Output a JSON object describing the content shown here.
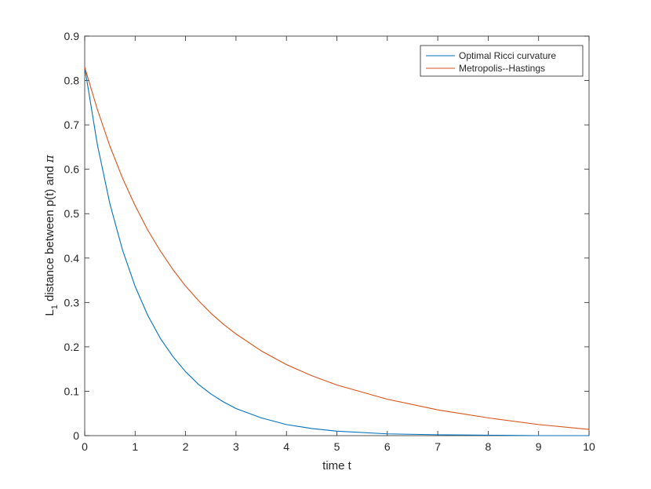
{
  "chart_data": {
    "type": "line",
    "xlabel": "time t",
    "ylabel": {
      "prefix": "L",
      "subscript": "1",
      "suffix": " distance between p(t) and ",
      "symbol": "π"
    },
    "xlim": [
      0,
      10
    ],
    "ylim": [
      0,
      0.9
    ],
    "xticks": [
      "0",
      "1",
      "2",
      "3",
      "4",
      "5",
      "6",
      "7",
      "8",
      "9",
      "10"
    ],
    "yticks": [
      "0",
      "0.1",
      "0.2",
      "0.3",
      "0.4",
      "0.5",
      "0.6",
      "0.7",
      "0.8",
      "0.9"
    ],
    "grid": false,
    "legend_position": "top-right",
    "series": [
      {
        "name": "Optimal Ricci curvature",
        "color": "#0072BD",
        "x": [
          0,
          0.25,
          0.5,
          0.75,
          1,
          1.25,
          1.5,
          1.75,
          2,
          2.25,
          2.5,
          2.75,
          3,
          3.5,
          4,
          4.5,
          5,
          6,
          7,
          8,
          9,
          10
        ],
        "y": [
          0.83,
          0.656,
          0.522,
          0.418,
          0.336,
          0.271,
          0.219,
          0.178,
          0.144,
          0.116,
          0.094,
          0.076,
          0.061,
          0.04,
          0.025,
          0.016,
          0.01,
          0.004,
          0.002,
          0.001,
          0.0,
          0.0
        ]
      },
      {
        "name": "Metropolis--Hastings",
        "color": "#D95319",
        "x": [
          0,
          0.25,
          0.5,
          0.75,
          1,
          1.25,
          1.5,
          1.75,
          2,
          2.25,
          2.5,
          2.75,
          3,
          3.5,
          4,
          4.5,
          5,
          6,
          7,
          8,
          9,
          10
        ],
        "y": [
          0.83,
          0.735,
          0.652,
          0.58,
          0.518,
          0.463,
          0.416,
          0.374,
          0.337,
          0.305,
          0.276,
          0.251,
          0.229,
          0.191,
          0.16,
          0.135,
          0.114,
          0.082,
          0.058,
          0.04,
          0.025,
          0.014
        ]
      }
    ]
  }
}
